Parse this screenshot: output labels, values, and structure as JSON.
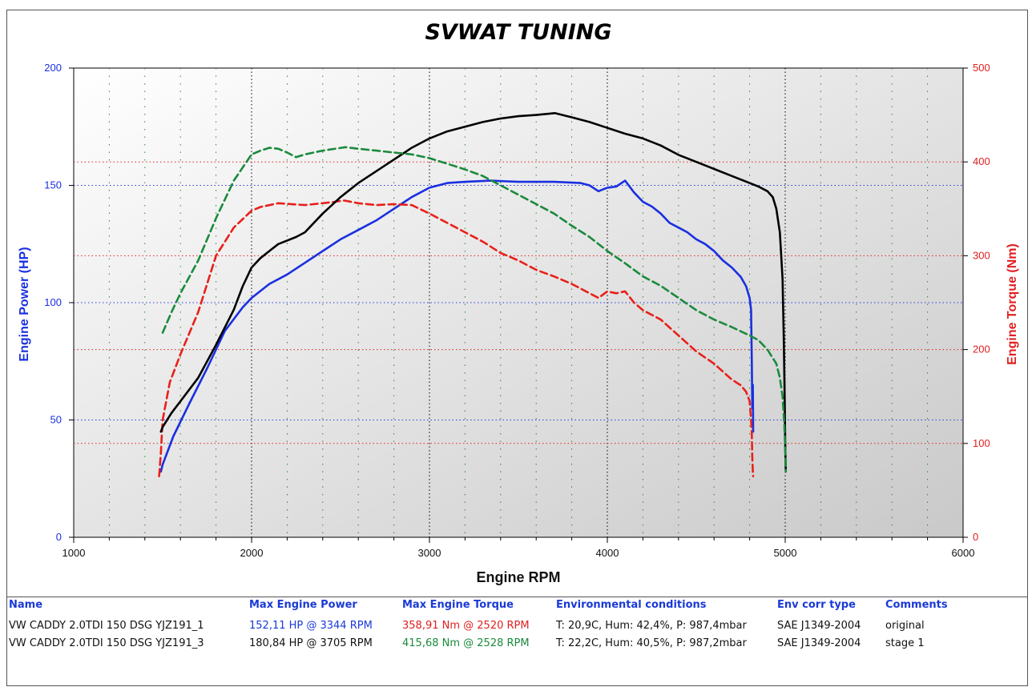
{
  "chart_data": {
    "type": "line",
    "title": "SVWAT TUNING",
    "xlabel": "Engine RPM",
    "ylabel_left": "Engine Power (HP)",
    "ylabel_right": "Engine Torque (Nm)",
    "xlim": [
      1000,
      6000
    ],
    "ylim_left": [
      0,
      200
    ],
    "ylim_right": [
      0,
      500
    ],
    "x_ticks": [
      "1000",
      "2000",
      "3000",
      "4000",
      "5000",
      "6000"
    ],
    "y_left_ticks": [
      "0",
      "50",
      "100",
      "150",
      "200"
    ],
    "y_right_ticks": [
      "0",
      "100",
      "200",
      "300",
      "400",
      "500"
    ],
    "grid": true,
    "colors": {
      "power_original": "#1a2fe0",
      "torque_original": "#e8201a",
      "power_stage1": "#000000",
      "torque_stage1": "#1a8a3c"
    },
    "series": [
      {
        "axis": "left",
        "style": "solid",
        "color": "#1a2fe0",
        "x": [
          1490,
          1500,
          1560,
          1650,
          1750,
          1850,
          1950,
          2000,
          2100,
          2200,
          2300,
          2400,
          2500,
          2600,
          2700,
          2800,
          2900,
          3000,
          3100,
          3200,
          3344,
          3500,
          3700,
          3850,
          3900,
          3950,
          4000,
          4050,
          4100,
          4150,
          4200,
          4250,
          4300,
          4350,
          4400,
          4450,
          4500,
          4550,
          4600,
          4650,
          4700,
          4750,
          4780,
          4800,
          4808,
          4812,
          4815,
          4818,
          4820
        ],
        "y": [
          28,
          31,
          43,
          57,
          72,
          88,
          98,
          102,
          108,
          112,
          117,
          122,
          127,
          131,
          135,
          140,
          145,
          149,
          151,
          151.5,
          152,
          151.5,
          151.5,
          151,
          150,
          147.5,
          149,
          149.5,
          152,
          147,
          143,
          141,
          138,
          134,
          132,
          130,
          127,
          125,
          122,
          118,
          115,
          111,
          107,
          102,
          97,
          75,
          55,
          65,
          45
        ]
      },
      {
        "axis": "right",
        "style": "dashed",
        "color": "#e8201a",
        "x": [
          1480,
          1490,
          1500,
          1540,
          1600,
          1700,
          1800,
          1900,
          2000,
          2050,
          2150,
          2300,
          2450,
          2520,
          2600,
          2700,
          2800,
          2900,
          3000,
          3100,
          3200,
          3300,
          3400,
          3500,
          3600,
          3700,
          3800,
          3850,
          3900,
          3950,
          4000,
          4050,
          4100,
          4150,
          4200,
          4300,
          4400,
          4500,
          4600,
          4700,
          4750,
          4780,
          4800,
          4808,
          4812,
          4815,
          4818,
          4820
        ],
        "y": [
          65,
          90,
          125,
          165,
          195,
          240,
          300,
          330,
          348,
          352,
          356,
          354,
          357,
          358.9,
          356,
          354,
          355,
          354,
          345,
          335,
          325,
          315,
          303,
          295,
          285,
          278,
          270,
          265,
          260,
          255,
          262,
          260,
          262,
          250,
          242,
          232,
          215,
          198,
          185,
          168,
          162,
          155,
          145,
          125,
          110,
          85,
          70,
          65
        ]
      },
      {
        "axis": "left",
        "style": "solid",
        "color": "#000000",
        "x": [
          1490,
          1500,
          1550,
          1600,
          1700,
          1800,
          1900,
          1950,
          2000,
          2050,
          2100,
          2150,
          2200,
          2250,
          2300,
          2400,
          2500,
          2600,
          2700,
          2800,
          2900,
          3000,
          3100,
          3200,
          3300,
          3400,
          3500,
          3600,
          3705,
          3800,
          3900,
          4000,
          4100,
          4200,
          4300,
          4400,
          4500,
          4600,
          4700,
          4800,
          4850,
          4900,
          4930,
          4950,
          4970,
          4985,
          4992,
          4997,
          5000,
          5003
        ],
        "y": [
          45,
          47,
          53,
          58,
          68,
          82,
          97,
          107,
          115,
          119,
          122,
          125,
          126.5,
          128,
          130,
          138,
          145,
          151,
          156,
          161,
          166,
          170,
          173,
          175,
          177,
          178.5,
          179.5,
          180,
          180.8,
          179,
          177,
          174.5,
          172,
          170,
          167,
          163,
          160,
          157,
          154,
          151,
          149.5,
          147.5,
          145,
          140,
          130,
          110,
          85,
          60,
          40,
          28
        ]
      },
      {
        "axis": "right",
        "style": "dashed",
        "color": "#1a8a3c",
        "x": [
          1500,
          1550,
          1600,
          1700,
          1800,
          1900,
          2000,
          2050,
          2100,
          2150,
          2200,
          2250,
          2300,
          2400,
          2528,
          2600,
          2700,
          2800,
          2900,
          3000,
          3100,
          3200,
          3300,
          3400,
          3500,
          3600,
          3700,
          3800,
          3900,
          4000,
          4100,
          4200,
          4300,
          4400,
          4500,
          4600,
          4700,
          4800,
          4850,
          4900,
          4950,
          4970,
          4985,
          4995,
          5000,
          5003
        ],
        "y": [
          218,
          240,
          260,
          295,
          340,
          380,
          408,
          412,
          415,
          414,
          410,
          405,
          408,
          412,
          415.7,
          414,
          412,
          410,
          408,
          404,
          398,
          392,
          385,
          375,
          365,
          355,
          345,
          332,
          320,
          305,
          292,
          278,
          268,
          255,
          242,
          232,
          224,
          215,
          210,
          200,
          185,
          170,
          150,
          120,
          95,
          70
        ]
      }
    ]
  },
  "legend_table": {
    "headers": [
      "Name",
      "Max Engine Power",
      "Max Engine Torque",
      "Environmental conditions",
      "Env corr type",
      "Comments"
    ],
    "rows": [
      [
        "VW CADDY 2.0TDI 150 DSG YJZ191_1",
        "152,11 HP @ 3344 RPM",
        "358,91 Nm @ 2520 RPM",
        "T: 20,9C, Hum: 42,4%, P: 987,4mbar",
        "SAE J1349-2004",
        "original"
      ],
      [
        "VW CADDY 2.0TDI 150 DSG YJZ191_3",
        "180,84 HP @ 3705 RPM",
        "415,68 Nm @ 2528 RPM",
        "T: 22,2C, Hum: 40,5%, P: 987,2mbar",
        "SAE J1349-2004",
        "stage 1"
      ]
    ]
  }
}
